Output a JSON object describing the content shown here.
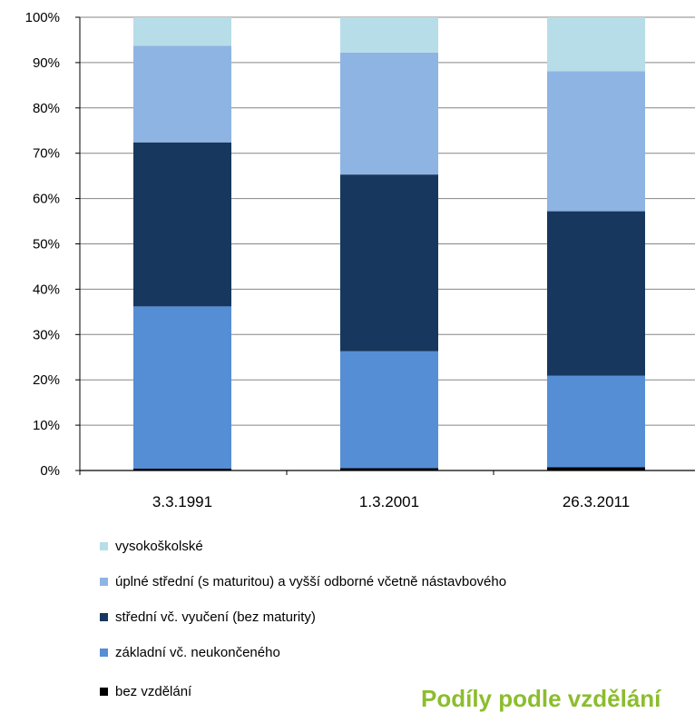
{
  "chart_data": {
    "type": "bar",
    "stacked": true,
    "categories": [
      "3.3.1991",
      "1.3.2001",
      "26.3.2011"
    ],
    "yticks": [
      "0%",
      "10%",
      "20%",
      "30%",
      "40%",
      "50%",
      "60%",
      "70%",
      "80%",
      "90%",
      "100%"
    ],
    "ylim": [
      0,
      100
    ],
    "grid": true,
    "legend_position": "bottom",
    "series": [
      {
        "name": "bez vzdělání",
        "color": "#000000",
        "values": [
          0.4,
          0.5,
          0.7
        ]
      },
      {
        "name": "základní vč.  neukončeného",
        "color": "#558ed5",
        "values": [
          35.8,
          25.8,
          20.2
        ]
      },
      {
        "name": "střední vč. vyučení (bez maturity)",
        "color": "#17375e",
        "values": [
          36.2,
          39.0,
          36.3
        ]
      },
      {
        "name": "úplné střední (s maturitou) a vyšší odborné včetně nástavbového",
        "color": "#8eb4e3",
        "values": [
          21.3,
          26.9,
          30.9
        ]
      },
      {
        "name": "vysokoškolské",
        "color": "#b7dde8",
        "values": [
          6.3,
          7.8,
          11.9
        ]
      }
    ]
  },
  "footer": {
    "title": "Podíly podle vzdělání"
  }
}
